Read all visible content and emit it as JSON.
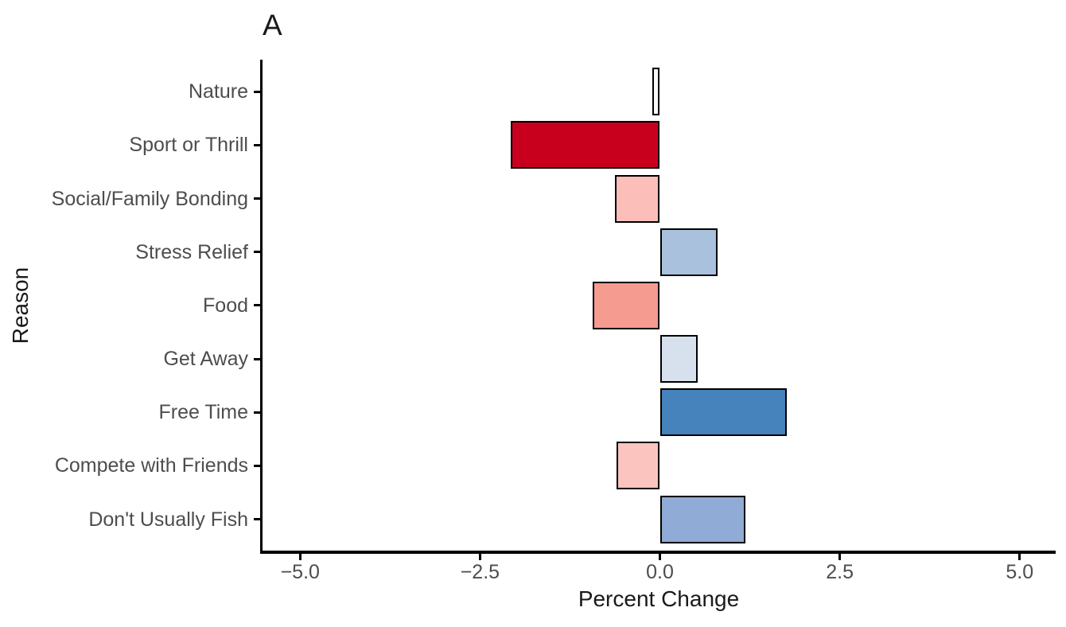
{
  "chart_data": {
    "type": "bar",
    "orientation": "horizontal",
    "title": "A",
    "xlabel": "Percent Change",
    "ylabel": "Reason",
    "categories": [
      "Nature",
      "Sport or Thrill",
      "Social/Family Bonding",
      "Stress Relief",
      "Food",
      "Get Away",
      "Free Time",
      "Compete with Friends",
      "Don't Usually Fish"
    ],
    "values": [
      -0.1,
      -2.07,
      -0.63,
      0.8,
      -0.93,
      0.52,
      1.76,
      -0.6,
      1.19
    ],
    "bar_fill_colors": [
      "#FFF8F6",
      "#C8001E",
      "#FBBEB8",
      "#A9C1DD",
      "#F69B8F",
      "#D7E1EE",
      "#4682BB",
      "#FBC4BE",
      "#90ABD5"
    ],
    "bar_border_color": "#000000",
    "x_tick_values": [
      -5.0,
      -2.5,
      0.0,
      2.5,
      5.0
    ],
    "x_tick_labels": [
      "−5.0",
      "−2.5",
      "0.0",
      "2.5",
      "5.0"
    ],
    "xlim": [
      -5.5,
      5.5
    ],
    "grid": false,
    "legend": "none",
    "colors": {
      "axis_line": "#000000",
      "tick_label": "#4D4D4D",
      "axis_title": "#1A1A1A",
      "background": "#FFFFFF"
    }
  }
}
